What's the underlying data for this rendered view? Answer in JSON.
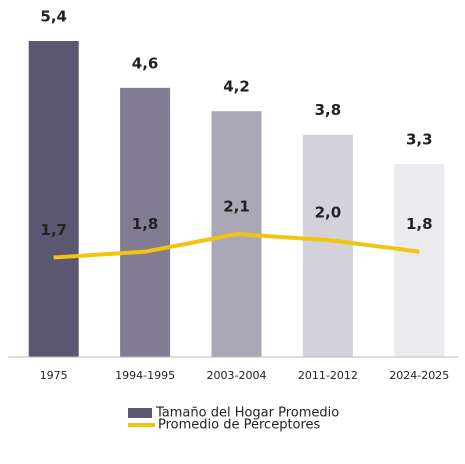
{
  "chart_data": {
    "type": "bar-line",
    "categories": [
      "1975",
      "1994-1995",
      "2003-2004",
      "2011-2012",
      "2024-2025"
    ],
    "series": [
      {
        "name": "Tamaño del Hogar Promedio",
        "type": "bar",
        "color": "#5b5671",
        "colors": [
          "#5b5671",
          "#817c91",
          "#aaa7b6",
          "#d3d1d9",
          "#ebeaee"
        ],
        "values": [
          5.4,
          4.6,
          4.2,
          3.8,
          3.3
        ],
        "value_labels": [
          "5,4",
          "4,6",
          "4,2",
          "3,8",
          "3,3"
        ]
      },
      {
        "name": "Promedio de Perceptores",
        "type": "line",
        "color": "#f2c40f",
        "values": [
          1.7,
          1.8,
          2.1,
          2.0,
          1.8
        ],
        "value_labels": [
          "1,7",
          "1,8",
          "2,1",
          "2,0",
          "1,8"
        ]
      }
    ]
  }
}
